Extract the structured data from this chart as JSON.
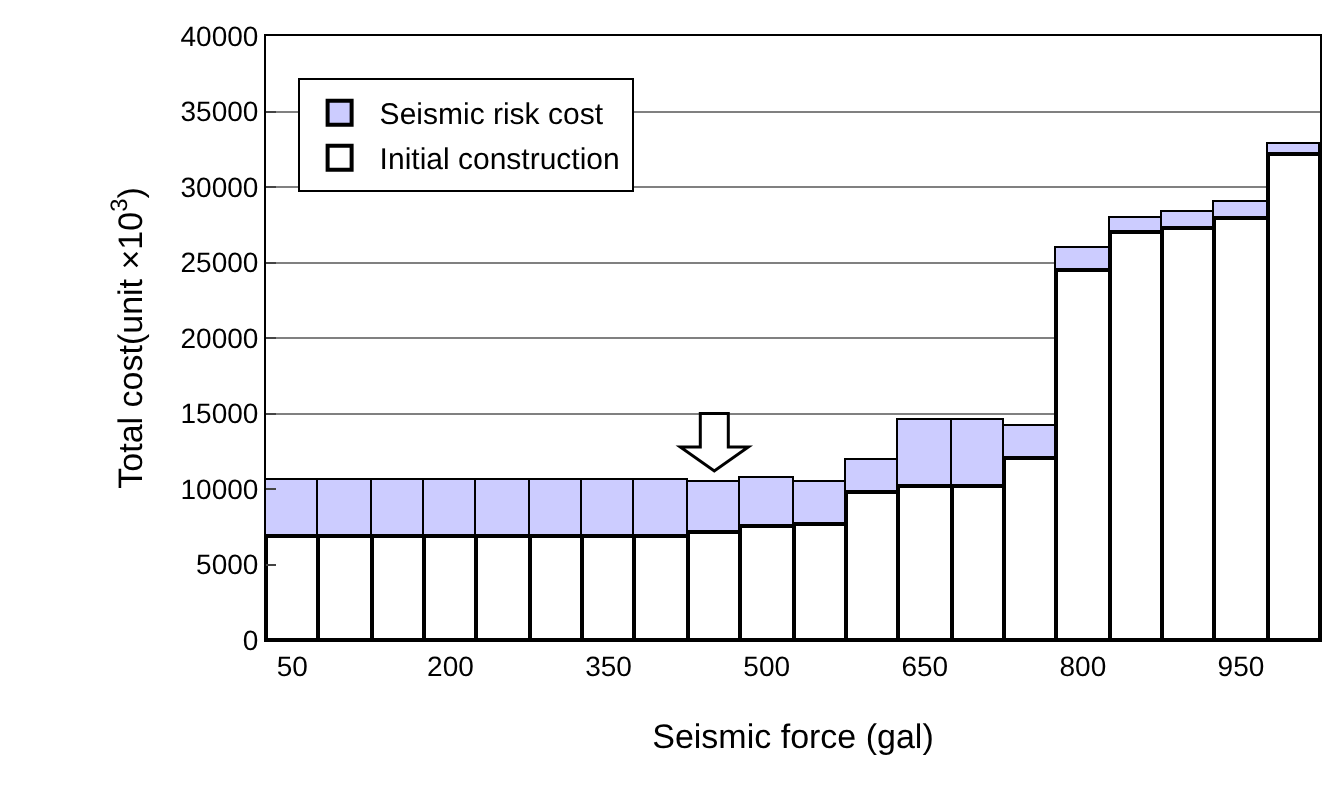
{
  "chart_data": {
    "type": "bar",
    "stacked": true,
    "xlabel": "Seismic force (gal)",
    "ylabel": "Total cost(unit ×10$^{3}$)",
    "categories": [
      "50",
      null,
      null,
      "200",
      null,
      null,
      "350",
      null,
      null,
      "500",
      null,
      null,
      "650",
      null,
      null,
      "800",
      null,
      null,
      "950",
      null
    ],
    "series": [
      {
        "name": "Initial construction",
        "color": "#ffffff",
        "values": [
          6900,
          6900,
          6900,
          6900,
          6900,
          6900,
          6900,
          6900,
          7200,
          7500,
          7700,
          9800,
          10200,
          10200,
          12100,
          24500,
          27000,
          27300,
          28000,
          32200
        ]
      },
      {
        "name": "Seismic risk cost",
        "color": "#ccccff",
        "values": [
          3700,
          3700,
          3700,
          3700,
          3700,
          3700,
          3700,
          3700,
          3200,
          3200,
          2800,
          2100,
          4400,
          4400,
          2100,
          1500,
          1000,
          1000,
          1000,
          600
        ]
      }
    ],
    "ylim": [
      0,
      40000
    ],
    "yticks": [
      0,
      5000,
      10000,
      15000,
      20000,
      25000,
      30000,
      35000,
      40000
    ],
    "grid": "y",
    "legend": "top left"
  }
}
